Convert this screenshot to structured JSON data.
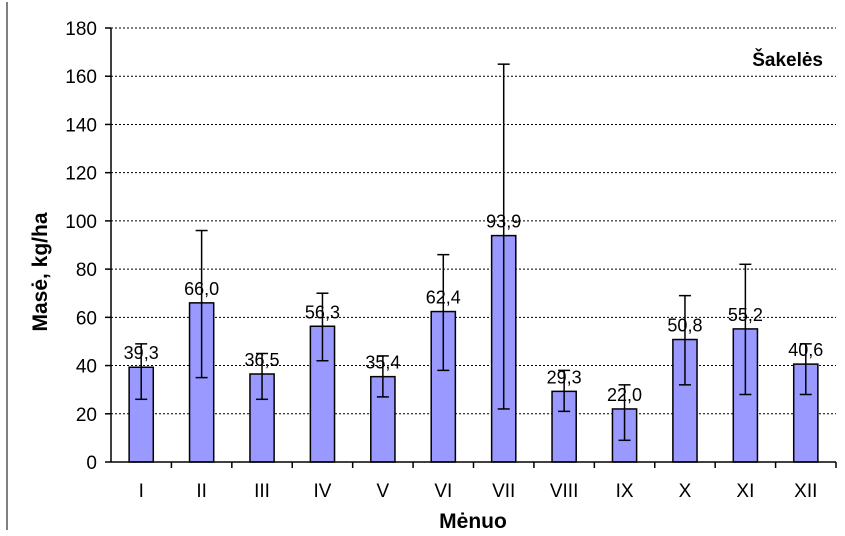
{
  "chart_data": {
    "type": "bar",
    "title": "Šakelės",
    "xlabel": "Mėnuo",
    "ylabel": "Masė, kg/ha",
    "ylim": [
      0,
      180
    ],
    "yticks": [
      0,
      20,
      40,
      60,
      80,
      100,
      120,
      140,
      160,
      180
    ],
    "grid": true,
    "categories": [
      "I",
      "II",
      "III",
      "IV",
      "V",
      "VI",
      "VII",
      "VIII",
      "IX",
      "X",
      "XI",
      "XII"
    ],
    "values": [
      39.3,
      66.0,
      36.5,
      56.3,
      35.4,
      62.4,
      93.9,
      29.3,
      22.0,
      50.8,
      55.2,
      40.6
    ],
    "value_labels": [
      "39,3",
      "66,0",
      "36,5",
      "56,3",
      "35,4",
      "62,4",
      "93,9",
      "29,3",
      "22,0",
      "50,8",
      "55,2",
      "40,6"
    ],
    "error_low": [
      26,
      35,
      26,
      42,
      27,
      38,
      22,
      21,
      9,
      32,
      28,
      28
    ],
    "error_high": [
      49,
      96,
      45,
      70,
      44,
      86,
      165,
      38,
      32,
      69,
      82,
      49
    ],
    "colors": {
      "bar": "#9999ff",
      "bar_border": "#000000",
      "grid": "#000000",
      "error": "#000000"
    }
  }
}
